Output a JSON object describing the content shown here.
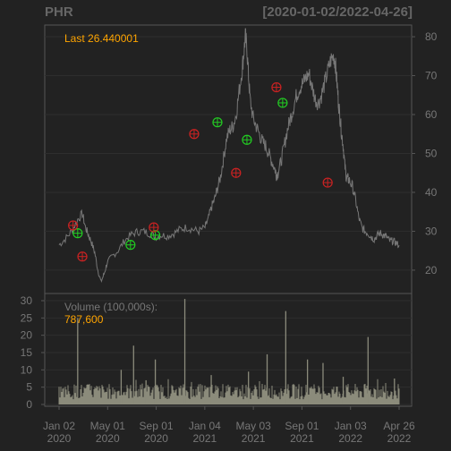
{
  "header": {
    "symbol": "PHR",
    "date_range": "[2020-01-02/2022-04-26]"
  },
  "price_panel": {
    "last_label": "Last 26.440001"
  },
  "volume_panel": {
    "label": "Volume (100,000s):",
    "last_value": "787,600"
  },
  "colors": {
    "background": "#222222",
    "price_line": "#777777",
    "volume_bar": "#8b8b7b",
    "grid": "#2e2e2e",
    "frame": "#555555",
    "axis_text": "#777777",
    "accent": "#ffa500",
    "buy_marker": "#22cc22",
    "sell_marker": "#cc2222"
  },
  "chart_data": [
    {
      "type": "line",
      "series": [
        {
          "name": "",
          "values": [
            [
              0,
              26.5
            ],
            [
              4,
              28
            ],
            [
              8,
              30
            ],
            [
              12,
              33
            ],
            [
              15,
              34.5
            ],
            [
              17,
              31
            ],
            [
              19,
              29
            ],
            [
              21,
              27
            ],
            [
              23,
              24.5
            ],
            [
              25,
              20
            ],
            [
              27,
              17
            ],
            [
              29,
              19
            ],
            [
              31,
              22
            ],
            [
              34,
              23.5
            ],
            [
              38,
              25
            ],
            [
              42,
              27.5
            ],
            [
              46,
              29
            ],
            [
              50,
              29.8
            ],
            [
              54,
              30
            ],
            [
              58,
              29.5
            ],
            [
              62,
              28.5
            ],
            [
              66,
              29
            ],
            [
              70,
              28.8
            ],
            [
              74,
              29.5
            ],
            [
              78,
              30.5
            ],
            [
              82,
              31
            ],
            [
              86,
              30.5
            ],
            [
              90,
              30
            ],
            [
              94,
              31
            ],
            [
              96,
              33
            ],
            [
              98,
              36
            ],
            [
              100,
              38
            ],
            [
              102,
              41
            ],
            [
              104,
              44
            ],
            [
              106,
              49
            ],
            [
              108,
              54
            ],
            [
              110,
              56
            ],
            [
              112,
              57
            ],
            [
              114,
              60
            ],
            [
              116,
              66
            ],
            [
              118,
              72
            ],
            [
              119,
              76
            ],
            [
              120,
              80
            ],
            [
              121,
              77
            ],
            [
              122,
              70
            ],
            [
              123,
              64
            ],
            [
              125,
              59
            ],
            [
              127,
              57
            ],
            [
              129,
              55
            ],
            [
              131,
              53
            ],
            [
              133,
              52
            ],
            [
              135,
              50
            ],
            [
              137,
              48
            ],
            [
              139,
              46
            ],
            [
              140,
              44.5
            ],
            [
              141,
              45
            ],
            [
              143,
              48
            ],
            [
              145,
              52
            ],
            [
              147,
              56
            ],
            [
              149,
              59
            ],
            [
              151,
              62
            ],
            [
              153,
              65
            ],
            [
              155,
              67
            ],
            [
              157,
              68
            ],
            [
              159,
              69.5
            ],
            [
              161,
              70.5
            ],
            [
              163,
              67
            ],
            [
              165,
              64
            ],
            [
              167,
              63
            ],
            [
              169,
              65
            ],
            [
              171,
              68
            ],
            [
              173,
              71
            ],
            [
              175,
              74
            ],
            [
              177,
              75
            ],
            [
              178,
              73
            ],
            [
              179,
              68
            ],
            [
              180,
              63
            ],
            [
              181,
              59
            ],
            [
              182,
              55
            ],
            [
              183,
              52
            ],
            [
              184,
              47
            ],
            [
              185,
              44
            ],
            [
              186,
              43.5
            ],
            [
              187,
              43
            ],
            [
              189,
              41.5
            ],
            [
              191,
              38
            ],
            [
              193,
              33.5
            ],
            [
              195,
              31
            ],
            [
              197,
              30
            ],
            [
              199,
              29.5
            ],
            [
              201,
              28.5
            ],
            [
              203,
              28
            ],
            [
              205,
              29
            ],
            [
              207,
              29.5
            ],
            [
              209,
              29
            ],
            [
              211,
              28.5
            ],
            [
              213,
              27.5
            ],
            [
              215,
              27.5
            ],
            [
              217,
              27
            ],
            [
              219,
              26.4
            ]
          ]
        }
      ],
      "markers": [
        {
          "type": "buy",
          "x": 12,
          "y": 29.5
        },
        {
          "type": "sell",
          "x": 9,
          "y": 31.5
        },
        {
          "type": "sell",
          "x": 15,
          "y": 23.5
        },
        {
          "type": "buy",
          "x": 46,
          "y": 26.5
        },
        {
          "type": "buy",
          "x": 62,
          "y": 29.0
        },
        {
          "type": "sell",
          "x": 61,
          "y": 31.0
        },
        {
          "type": "sell",
          "x": 87,
          "y": 55.0
        },
        {
          "type": "buy",
          "x": 102,
          "y": 58.0
        },
        {
          "type": "sell",
          "x": 114,
          "y": 45.0
        },
        {
          "type": "buy",
          "x": 121,
          "y": 53.5
        },
        {
          "type": "sell",
          "x": 140,
          "y": 67.0
        },
        {
          "type": "buy",
          "x": 144,
          "y": 63.0
        },
        {
          "type": "sell",
          "x": 173,
          "y": 42.5
        }
      ],
      "yticks": [
        20,
        30,
        40,
        50,
        60,
        70,
        80
      ],
      "ylim": [
        14,
        83
      ]
    },
    {
      "type": "bar",
      "yticks": [
        0,
        5,
        10,
        15,
        20,
        25,
        30
      ],
      "ylim": [
        0,
        31
      ],
      "spikes": [
        {
          "x": 12,
          "v": 25
        },
        {
          "x": 40,
          "v": 10
        },
        {
          "x": 48,
          "v": 17
        },
        {
          "x": 56,
          "v": 7
        },
        {
          "x": 62,
          "v": 13
        },
        {
          "x": 81,
          "v": 30.5
        },
        {
          "x": 98,
          "v": 8.5
        },
        {
          "x": 122,
          "v": 9.5
        },
        {
          "x": 134,
          "v": 14.5
        },
        {
          "x": 146,
          "v": 27
        },
        {
          "x": 160,
          "v": 13
        },
        {
          "x": 170,
          "v": 12
        },
        {
          "x": 183,
          "v": 8
        },
        {
          "x": 199,
          "v": 19.5
        },
        {
          "x": 216,
          "v": 7.5
        }
      ]
    }
  ],
  "x_axis": {
    "ticks": [
      {
        "idx": 0,
        "line1": "Jan 02",
        "line2": "2020"
      },
      {
        "idx": 1,
        "line1": "May 01",
        "line2": "2020"
      },
      {
        "idx": 2,
        "line1": "Sep 01",
        "line2": "2020"
      },
      {
        "idx": 3,
        "line1": "Jan 04",
        "line2": "2021"
      },
      {
        "idx": 4,
        "line1": "May 03",
        "line2": "2021"
      },
      {
        "idx": 5,
        "line1": "Sep 01",
        "line2": "2021"
      },
      {
        "idx": 6,
        "line1": "Jan 03",
        "line2": "2022"
      },
      {
        "idx": 7,
        "line1": "Apr 26",
        "line2": "2022"
      }
    ]
  }
}
